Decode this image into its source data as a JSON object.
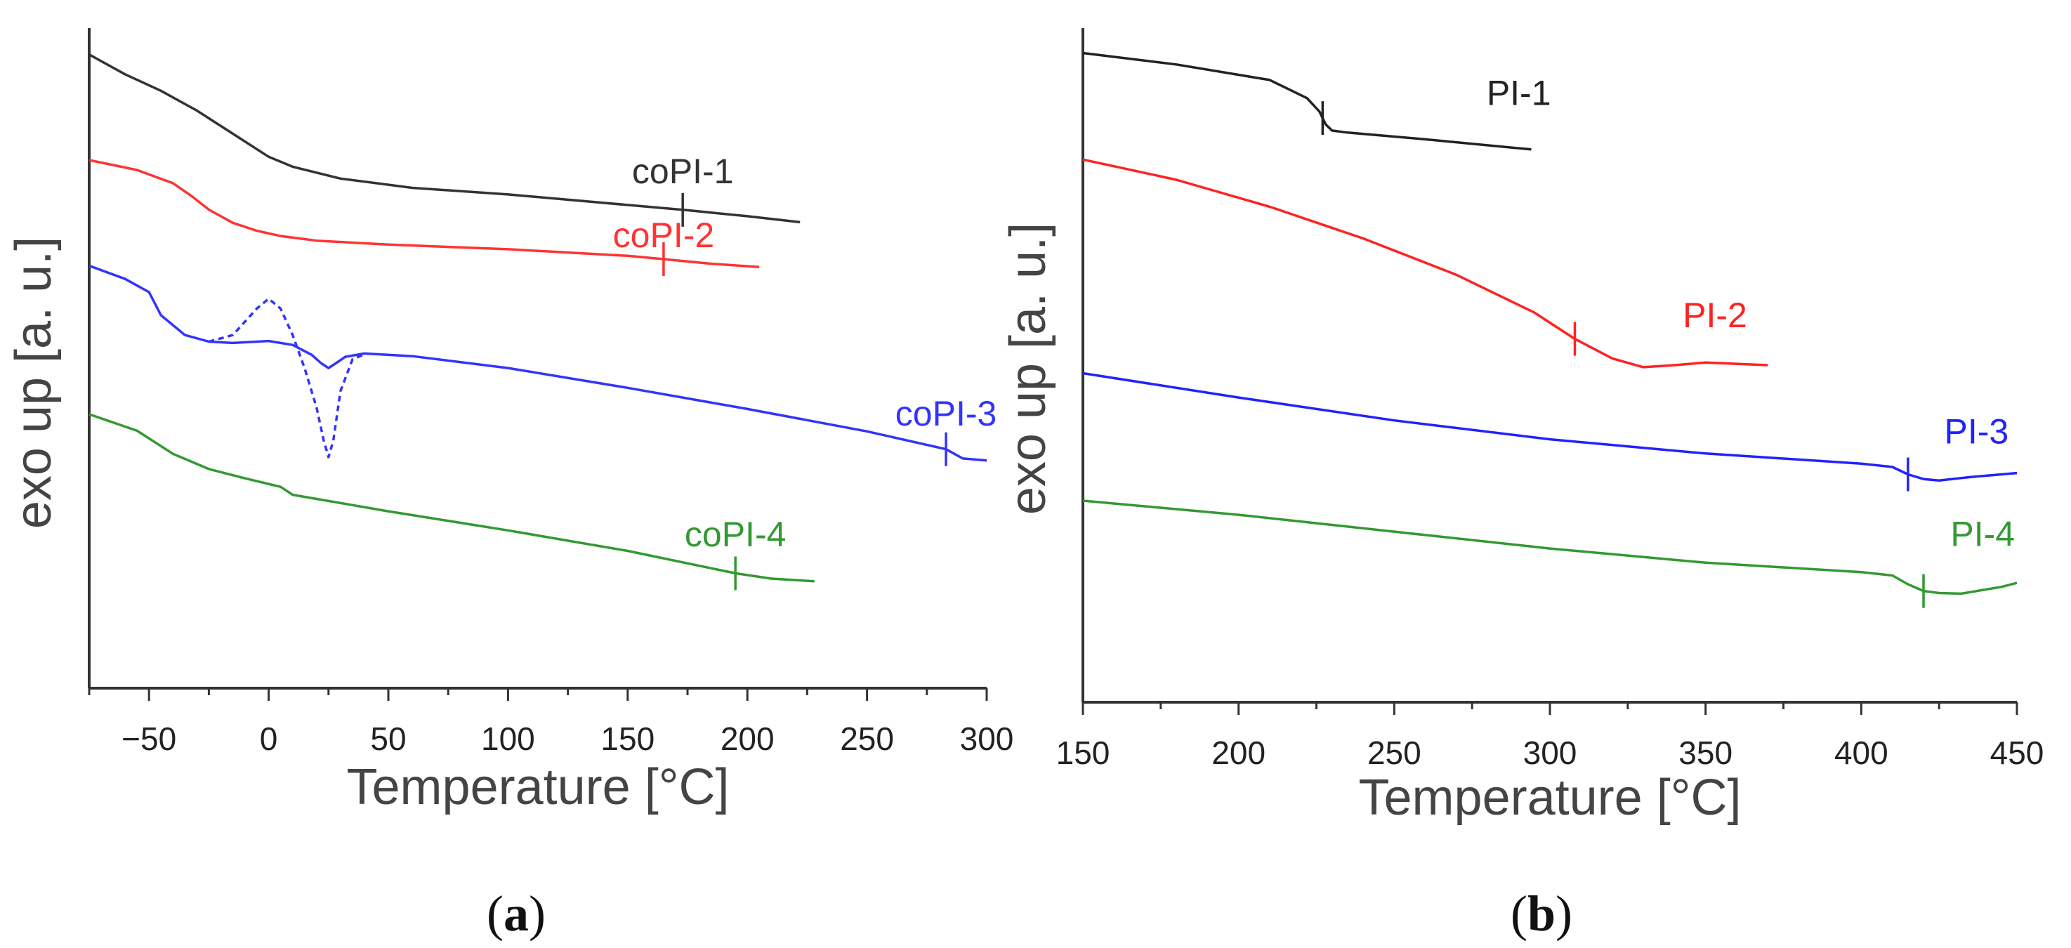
{
  "chart_data": [
    {
      "panel_label": "(a)",
      "panel_letter": "a",
      "type": "line",
      "xlabel": "Temperature [°C]",
      "ylabel": "exo up [a. u.]",
      "xlim": [
        -75,
        300
      ],
      "ylim": [
        0,
        100
      ],
      "xticks": [
        -50,
        0,
        50,
        100,
        150,
        200,
        250,
        300
      ],
      "xtick_labels": [
        "−50",
        "0",
        "50",
        "100",
        "150",
        "200",
        "250",
        "300"
      ],
      "series": [
        {
          "name": "coPI-1",
          "color": "#333333",
          "style": "solid",
          "x": [
            -75,
            -60,
            -45,
            -30,
            -15,
            0,
            10,
            30,
            60,
            100,
            150,
            175,
            200,
            222
          ],
          "y": [
            96,
            93,
            90.5,
            87.5,
            84,
            80.5,
            79,
            77.2,
            75.8,
            74.8,
            73.2,
            72.4,
            71.5,
            70.6
          ],
          "tg_x": 173,
          "label_anchor": [
            173,
            76.5
          ]
        },
        {
          "name": "coPI-2",
          "color": "#ff3333",
          "style": "solid",
          "x": [
            -75,
            -55,
            -40,
            -32,
            -25,
            -15,
            -5,
            5,
            20,
            50,
            100,
            150,
            165,
            185,
            205
          ],
          "y": [
            80,
            78.5,
            76.5,
            74.5,
            72.5,
            70.5,
            69.3,
            68.5,
            67.8,
            67.2,
            66.5,
            65.5,
            65.0,
            64.3,
            63.8
          ],
          "tg_x": 165,
          "label_anchor": [
            165,
            66.8
          ]
        },
        {
          "name": "coPI-3",
          "color": "#3333ff",
          "style": "solid",
          "x": [
            -75,
            -60,
            -50,
            -45,
            -35,
            -25,
            -15,
            0,
            10,
            18,
            22,
            25,
            28,
            32,
            40,
            60,
            100,
            150,
            200,
            250,
            283,
            290,
            300
          ],
          "y": [
            64,
            62,
            60,
            56.5,
            53.5,
            52.5,
            52.3,
            52.6,
            52.0,
            50.5,
            49.2,
            48.5,
            49.2,
            50.2,
            50.7,
            50.3,
            48.5,
            45.5,
            42.3,
            38.9,
            36.2,
            34.8,
            34.5
          ],
          "tg_x": 283,
          "label_anchor": [
            283,
            39.8
          ]
        },
        {
          "name": "coPI-3 (dashed)",
          "color": "#3333ff",
          "style": "dashed",
          "x": [
            -25,
            -15,
            -5,
            0,
            5,
            10,
            15,
            20,
            23,
            25,
            27,
            30,
            35,
            40
          ],
          "y": [
            52.5,
            53.5,
            57.5,
            59.0,
            57.5,
            53.5,
            48.5,
            42.5,
            37.5,
            35.0,
            37.5,
            45.0,
            49.8,
            50.6
          ],
          "tg_x": null
        },
        {
          "name": "coPI-4",
          "color": "#339933",
          "style": "solid",
          "x": [
            -75,
            -55,
            -40,
            -25,
            -10,
            5,
            10,
            50,
            100,
            150,
            195,
            210,
            228
          ],
          "y": [
            41.5,
            39,
            35.5,
            33.2,
            31.8,
            30.5,
            29.3,
            26.8,
            23.9,
            20.8,
            17.4,
            16.6,
            16.2
          ],
          "tg_x": 195,
          "label_anchor": [
            195,
            21.5
          ]
        }
      ]
    },
    {
      "panel_label": "(b)",
      "panel_letter": "b",
      "type": "line",
      "xlabel": "Temperature [°C]",
      "ylabel": "exo up [a. u.]",
      "xlim": [
        150,
        450
      ],
      "ylim": [
        0,
        100
      ],
      "xticks": [
        150,
        200,
        250,
        300,
        350,
        400,
        450
      ],
      "xtick_labels": [
        "150",
        "200",
        "250",
        "300",
        "350",
        "400",
        "450"
      ],
      "series": [
        {
          "name": "PI-1",
          "color": "#222222",
          "style": "solid",
          "x": [
            150,
            180,
            210,
            222,
            226,
            228,
            230,
            235,
            260,
            294
          ],
          "y": [
            96.3,
            94.6,
            92.3,
            89.6,
            87.6,
            85.7,
            84.8,
            84.5,
            83.5,
            82.0
          ],
          "tg_x": 227,
          "label_anchor": [
            290,
            88.6
          ]
        },
        {
          "name": "PI-2",
          "color": "#ff2222",
          "style": "solid",
          "x": [
            150,
            180,
            210,
            240,
            270,
            295,
            308,
            320,
            330,
            340,
            350,
            370
          ],
          "y": [
            80.5,
            77.5,
            73.5,
            68.8,
            63.4,
            57.8,
            53.9,
            51.0,
            49.7,
            50.0,
            50.4,
            50.0
          ],
          "tg_x": 308,
          "label_anchor": [
            353,
            55.6
          ]
        },
        {
          "name": "PI-3",
          "color": "#2222ff",
          "style": "solid",
          "x": [
            150,
            200,
            250,
            300,
            350,
            400,
            410,
            415,
            420,
            425,
            435,
            450
          ],
          "y": [
            48.8,
            45.2,
            41.8,
            39.0,
            36.9,
            35.4,
            34.9,
            33.8,
            33.1,
            32.9,
            33.4,
            34.0
          ],
          "tg_x": 415,
          "label_anchor": [
            437,
            38.4
          ]
        },
        {
          "name": "PI-4",
          "color": "#339933",
          "style": "solid",
          "x": [
            150,
            200,
            250,
            300,
            350,
            400,
            410,
            415,
            420,
            425,
            432,
            445,
            450
          ],
          "y": [
            29.9,
            27.8,
            25.3,
            22.8,
            20.7,
            19.3,
            18.8,
            17.5,
            16.5,
            16.2,
            16.1,
            17.1,
            17.7
          ],
          "tg_x": 420,
          "label_anchor": [
            439,
            23.2
          ]
        }
      ]
    }
  ]
}
